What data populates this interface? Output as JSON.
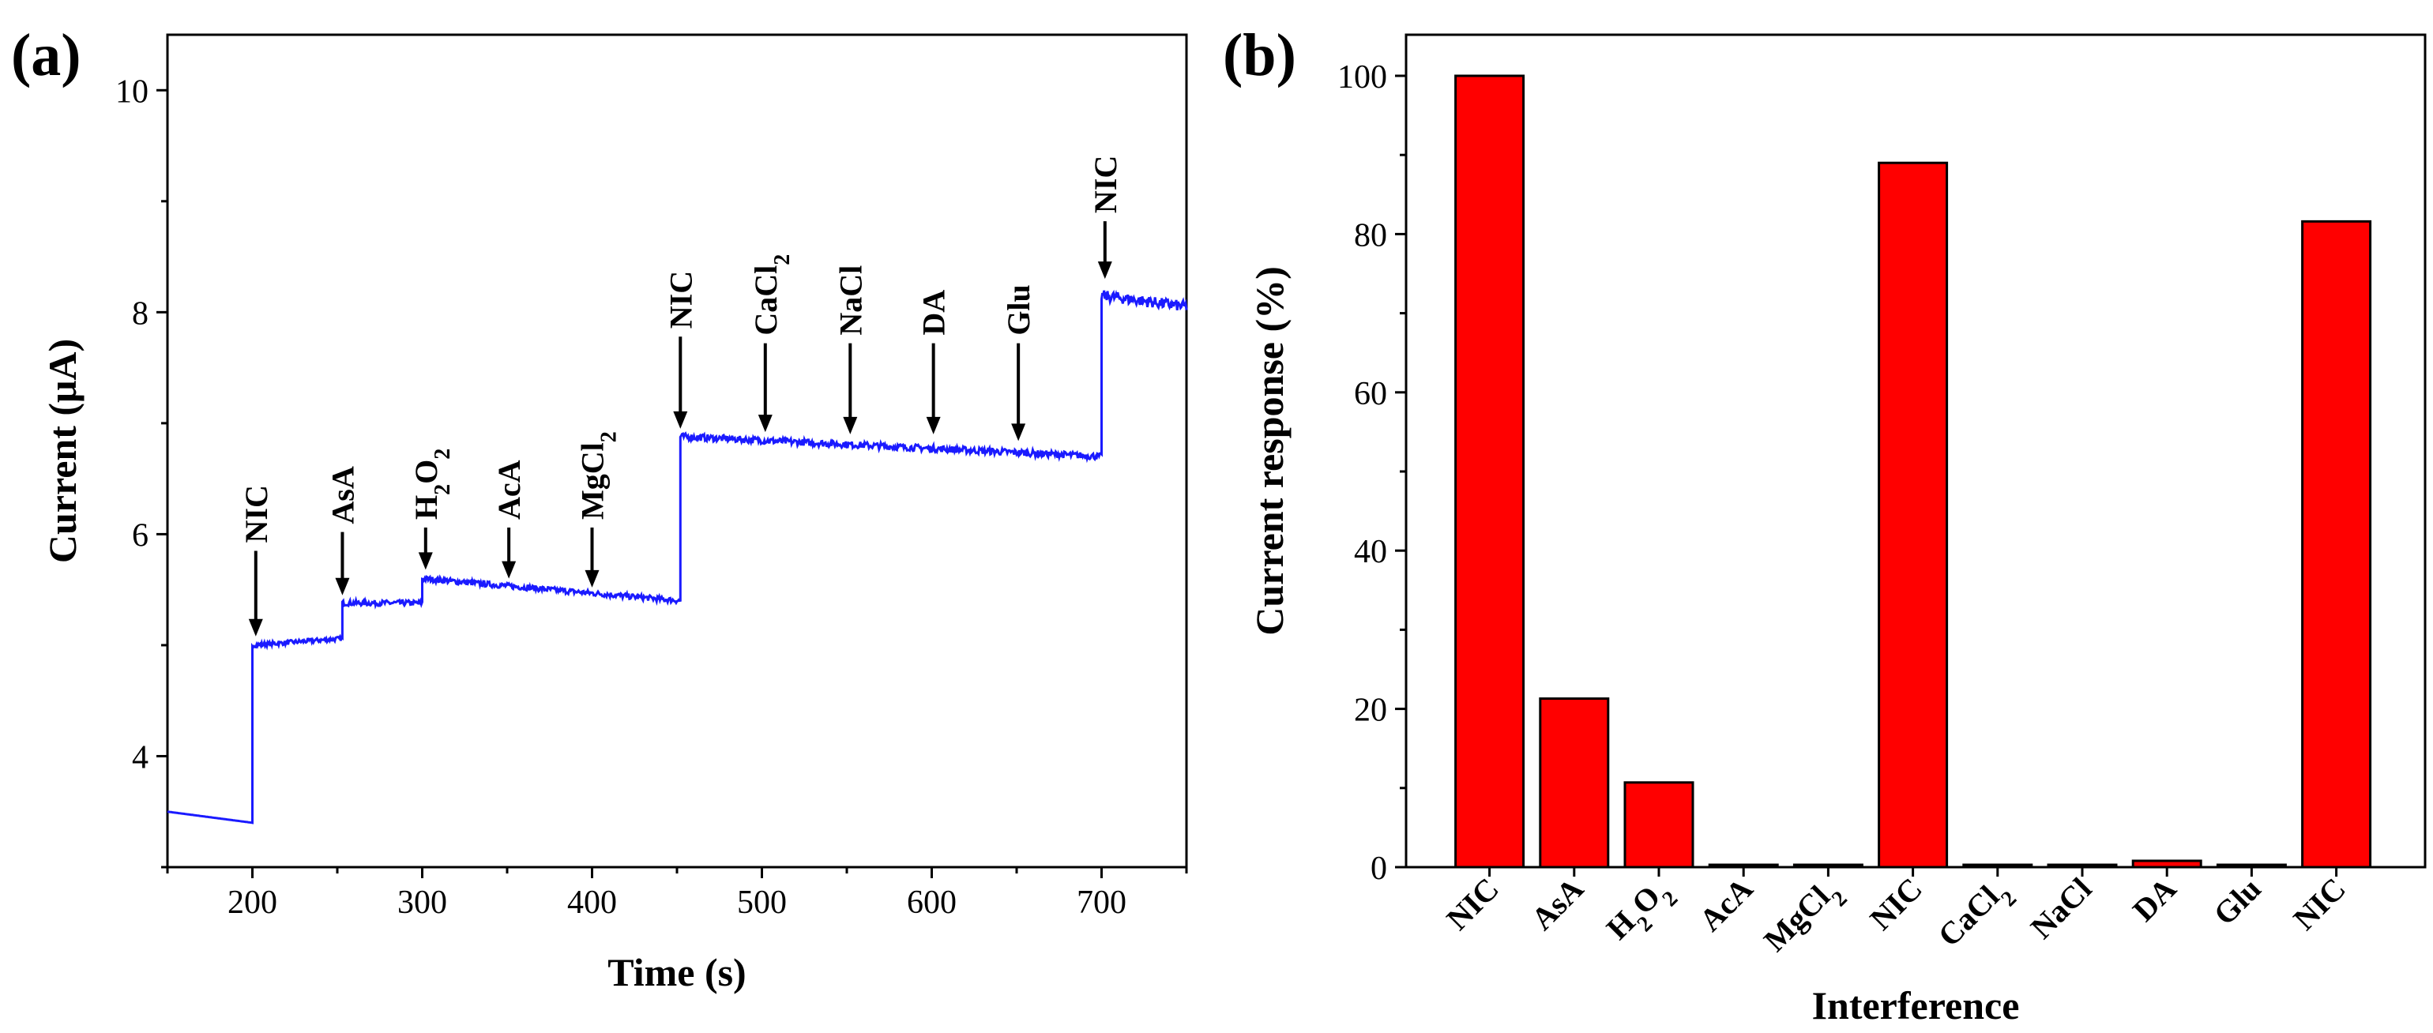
{
  "chart_data": [
    {
      "panel": "(a)",
      "type": "line",
      "xlabel": "Time (s)",
      "ylabel": "Current (μA)",
      "xlim": [
        150,
        750
      ],
      "ylim": [
        3.0,
        10.5
      ],
      "xticks": [
        200,
        300,
        400,
        500,
        600,
        700
      ],
      "yticks": [
        4,
        6,
        8,
        10
      ],
      "color": "#1a1aff",
      "segments": [
        {
          "t_start": 150,
          "t_end": 200,
          "i_start": 3.5,
          "i_end": 3.4,
          "noise": 0.0
        },
        {
          "t_start": 200,
          "t_end": 253,
          "i_start": 5.0,
          "i_end": 5.06,
          "noise": 0.02
        },
        {
          "t_start": 253,
          "t_end": 300,
          "i_start": 5.38,
          "i_end": 5.38,
          "noise": 0.025
        },
        {
          "t_start": 300,
          "t_end": 452,
          "i_start": 5.6,
          "i_end": 5.4,
          "noise": 0.025
        },
        {
          "t_start": 452,
          "t_end": 700,
          "i_start": 6.88,
          "i_end": 6.7,
          "noise": 0.03
        },
        {
          "t_start": 700,
          "t_end": 750,
          "i_start": 8.15,
          "i_end": 8.05,
          "noise": 0.05
        }
      ],
      "annotations": [
        {
          "label": "NIC",
          "sub": "",
          "label_after": "",
          "t": 202,
          "tip": 5.08,
          "tail": 5.85
        },
        {
          "label": "AsA",
          "sub": "",
          "label_after": "",
          "t": 253,
          "tip": 5.45,
          "tail": 6.02
        },
        {
          "label": "H",
          "sub": "2",
          "label_after": "O",
          "sub2": "2",
          "t": 302,
          "tip": 5.68,
          "tail": 6.06
        },
        {
          "label": "AcA",
          "sub": "",
          "label_after": "",
          "t": 351,
          "tip": 5.6,
          "tail": 6.06
        },
        {
          "label": "MgCl",
          "sub": "2",
          "label_after": "",
          "t": 400,
          "tip": 5.52,
          "tail": 6.06
        },
        {
          "label": "NIC",
          "sub": "",
          "label_after": "",
          "t": 452,
          "tip": 6.95,
          "tail": 7.78
        },
        {
          "label": "CaCl",
          "sub": "2",
          "label_after": "",
          "t": 502,
          "tip": 6.92,
          "tail": 7.72
        },
        {
          "label": "NaCl",
          "sub": "",
          "label_after": "",
          "t": 552,
          "tip": 6.9,
          "tail": 7.72
        },
        {
          "label": "DA",
          "sub": "",
          "label_after": "",
          "t": 601,
          "tip": 6.9,
          "tail": 7.72
        },
        {
          "label": "Glu",
          "sub": "",
          "label_after": "",
          "t": 651,
          "tip": 6.84,
          "tail": 7.72
        },
        {
          "label": "NIC",
          "sub": "",
          "label_after": "",
          "t": 702,
          "tip": 8.3,
          "tail": 8.82
        }
      ]
    },
    {
      "panel": "(b)",
      "type": "bar",
      "xlabel": "Interference",
      "ylabel": "Current response (%)",
      "ylim": [
        0,
        100
      ],
      "yticks": [
        0,
        20,
        40,
        60,
        80,
        100
      ],
      "color": "#ff0000",
      "categories": [
        {
          "label": "NIC",
          "sub": ""
        },
        {
          "label": "AsA",
          "sub": ""
        },
        {
          "label": "H",
          "sub": "2",
          "label_after": "O",
          "sub2": "2"
        },
        {
          "label": "AcA",
          "sub": ""
        },
        {
          "label": "MgCl",
          "sub": "2"
        },
        {
          "label": "NIC",
          "sub": ""
        },
        {
          "label": "CaCl",
          "sub": "2"
        },
        {
          "label": "NaCl",
          "sub": ""
        },
        {
          "label": "DA",
          "sub": ""
        },
        {
          "label": "Glu",
          "sub": ""
        },
        {
          "label": "NIC",
          "sub": ""
        }
      ],
      "values": [
        100,
        21.3,
        10.7,
        0.3,
        0.3,
        89.0,
        0.3,
        0.3,
        0.8,
        0.3,
        81.6
      ]
    }
  ]
}
